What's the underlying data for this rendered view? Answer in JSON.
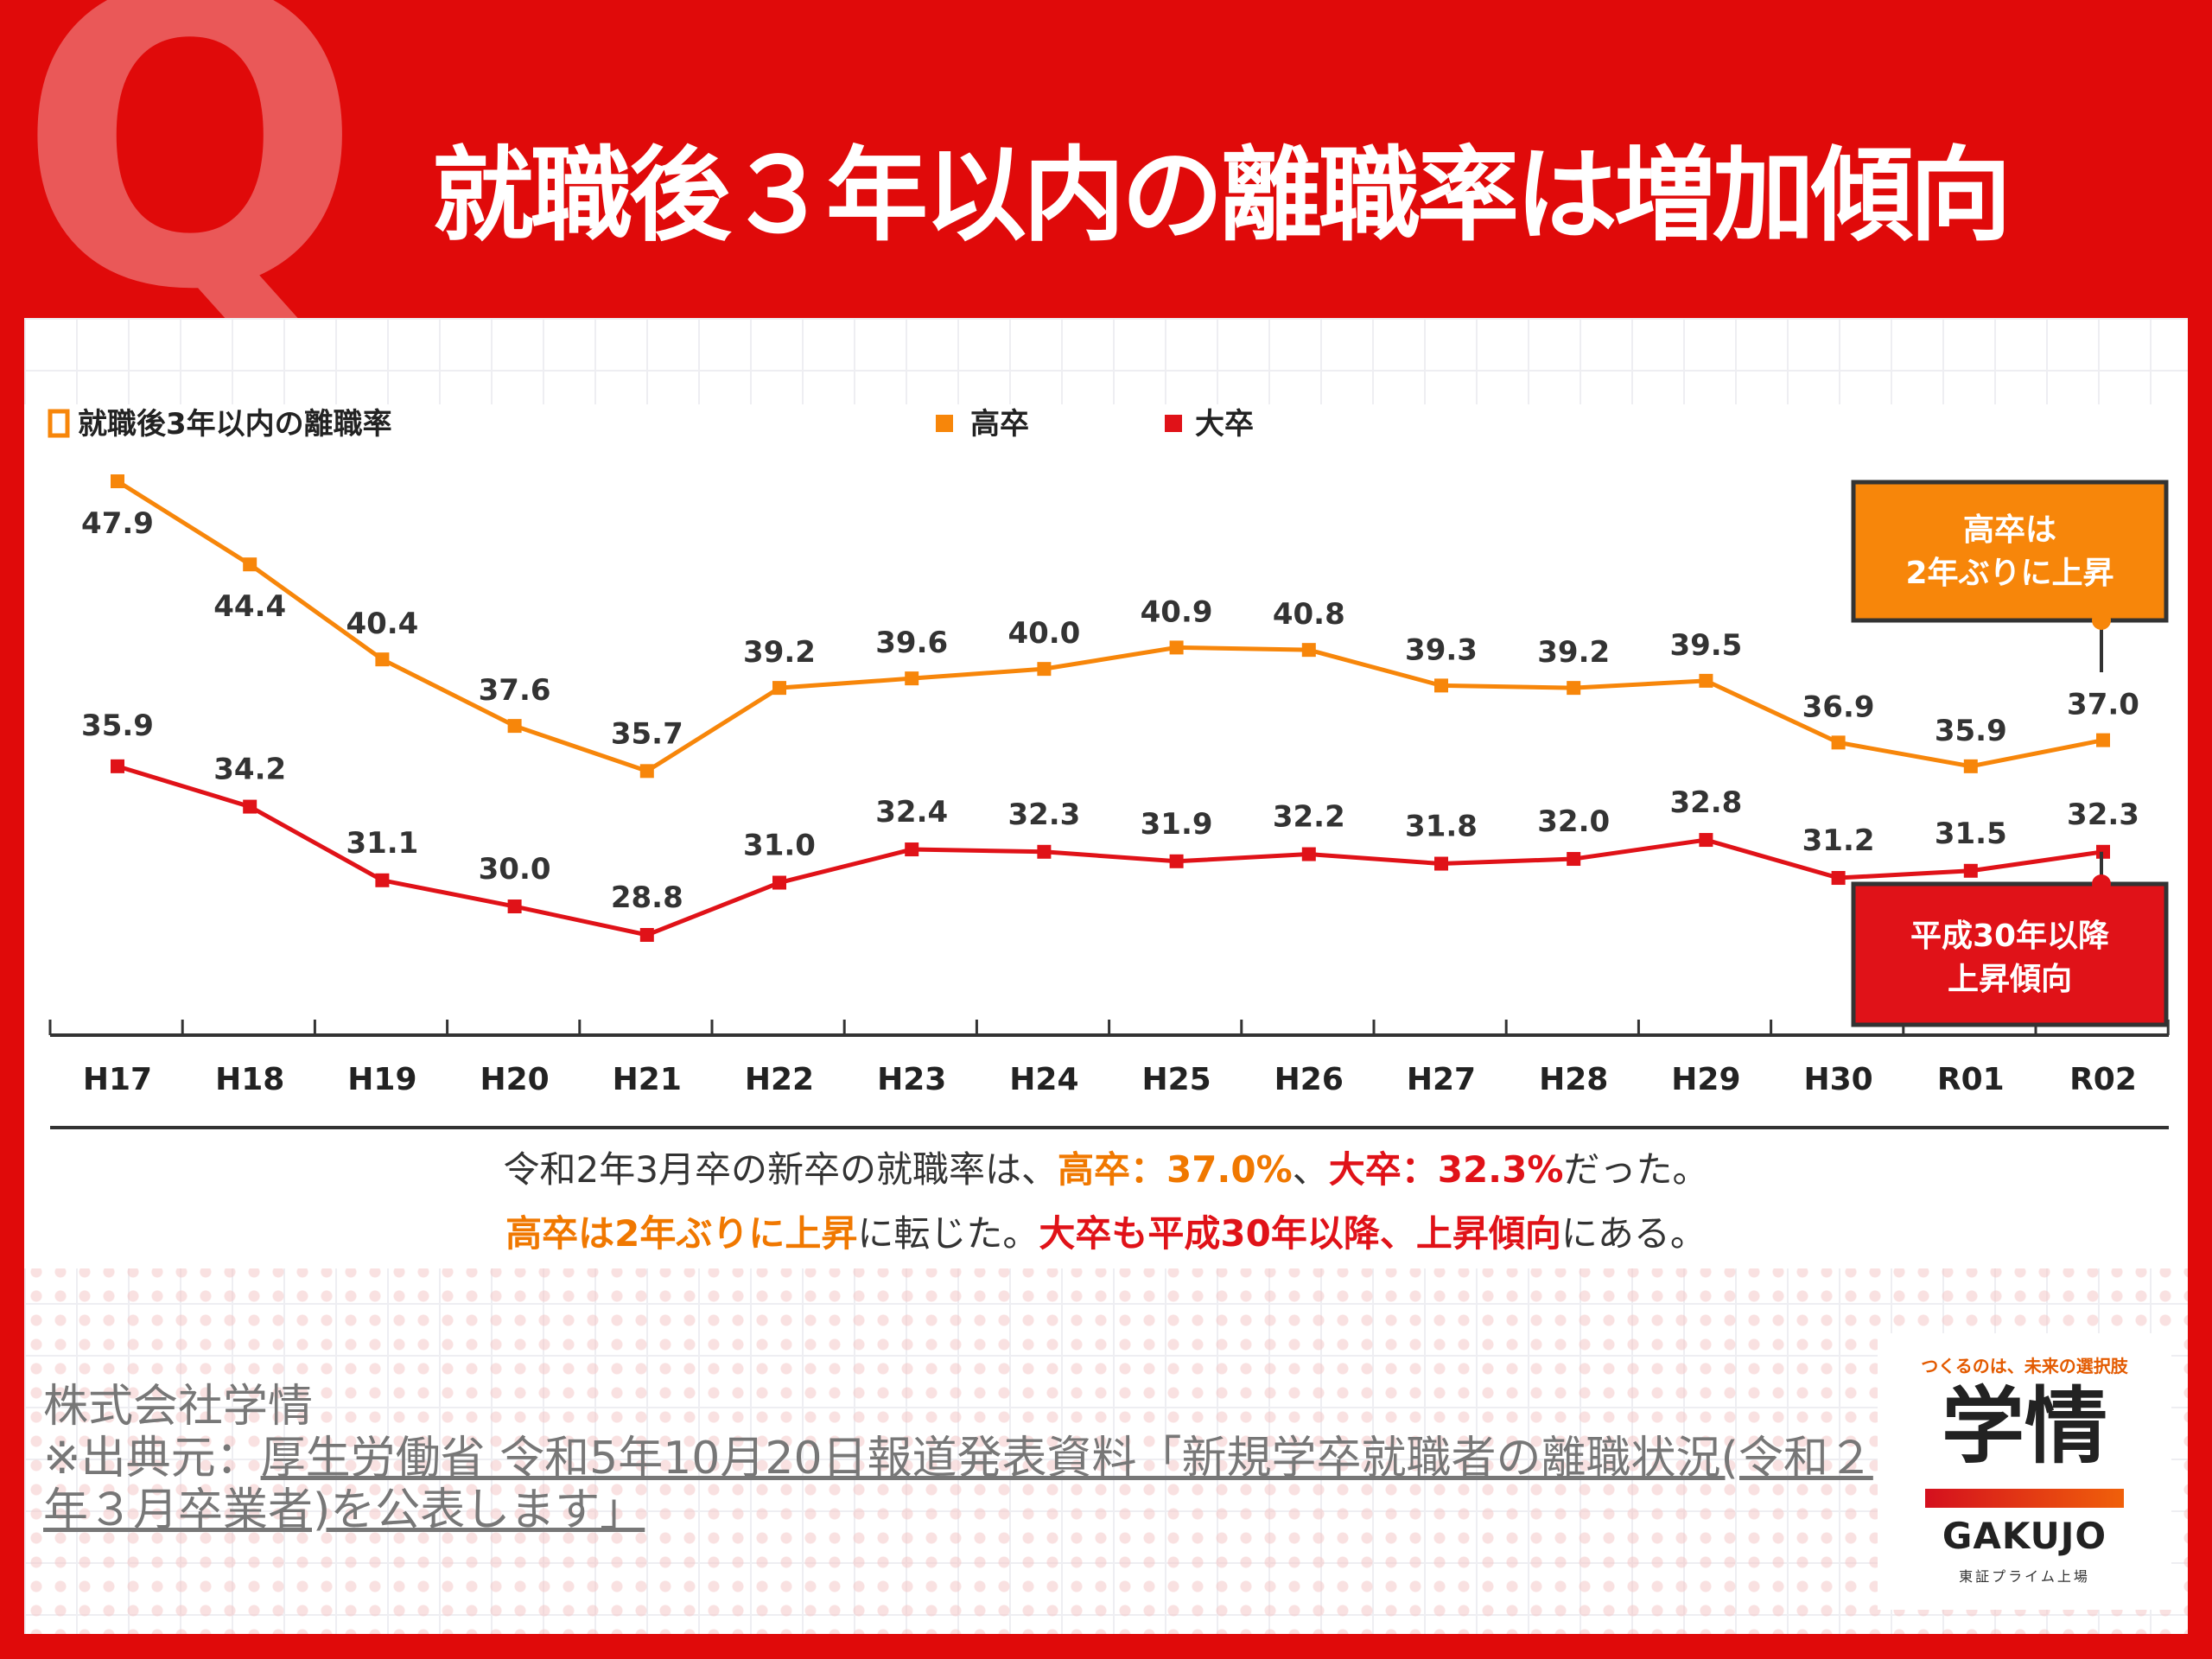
{
  "header": {
    "q_letter": "Q",
    "title": "就職後３年以内の離職率は増加傾向"
  },
  "colors": {
    "koukou": "#f7860a",
    "daisotsu": "#e01218",
    "brand_red": "#e00a0a"
  },
  "chart_data": {
    "type": "line",
    "title": "就職後3年以内の離職率",
    "categories": [
      "H17",
      "H18",
      "H19",
      "H20",
      "H21",
      "H22",
      "H23",
      "H24",
      "H25",
      "H26",
      "H27",
      "H28",
      "H29",
      "H30",
      "R01",
      "R02"
    ],
    "series": [
      {
        "name": "高卒",
        "color": "#f7860a",
        "labels": [
          "47.9",
          "44.4",
          "40.4",
          "37.6",
          "35.7",
          "39.2",
          "39.6",
          "40.0",
          "40.9",
          "40.8",
          "39.3",
          "39.2",
          "39.5",
          "36.9",
          "35.9",
          "37.0"
        ],
        "values": [
          47.9,
          44.4,
          40.4,
          37.6,
          35.7,
          39.2,
          39.6,
          40.0,
          40.9,
          40.8,
          39.3,
          39.2,
          39.5,
          36.9,
          35.9,
          37.0
        ]
      },
      {
        "name": "大卒",
        "color": "#e01218",
        "labels": [
          "35.9",
          "34.2",
          "31.1",
          "30.0",
          "28.8",
          "31.0",
          "32.4",
          "32.3",
          "31.9",
          "32.2",
          "31.8",
          "32.0",
          "32.8",
          "31.2",
          "31.5",
          "32.3"
        ],
        "values": [
          35.9,
          34.2,
          31.1,
          30.0,
          28.8,
          31.0,
          32.4,
          32.3,
          31.9,
          32.2,
          31.8,
          32.0,
          32.8,
          31.2,
          31.5,
          32.3
        ]
      }
    ],
    "callouts": [
      {
        "series": "高卒",
        "lines": [
          "高卒は",
          "2年ぶりに上昇"
        ]
      },
      {
        "series": "大卒",
        "lines": [
          "平成30年以降",
          "上昇傾向"
        ]
      }
    ],
    "summary": {
      "line1": [
        {
          "text": "令和2年3月卒の新卒の就職率は、",
          "style": "plain"
        },
        {
          "text": "高卒：37.0%",
          "style": "orange"
        },
        {
          "text": "、",
          "style": "plain"
        },
        {
          "text": "大卒：32.3%",
          "style": "red"
        },
        {
          "text": "だった。",
          "style": "plain"
        }
      ],
      "line2": [
        {
          "text": "高卒は2年ぶりに上昇",
          "style": "orange"
        },
        {
          "text": "に転じた。",
          "style": "plain"
        },
        {
          "text": "大卒も平成30年以降、上昇傾向",
          "style": "red"
        },
        {
          "text": "にある。",
          "style": "plain"
        }
      ]
    }
  },
  "source": {
    "company": "株式会社学情",
    "prefix": "※出典元：",
    "link_text": "厚生労働省 令和5年10月20日報道発表資料「新規学卒就職者の離職状況(令和２年３月卒業者)を公表します」"
  },
  "logo": {
    "tagline": "つくるのは、未来の選択肢",
    "main": "学情",
    "english": "GAKUJO",
    "sub": "東証プライム上場"
  }
}
